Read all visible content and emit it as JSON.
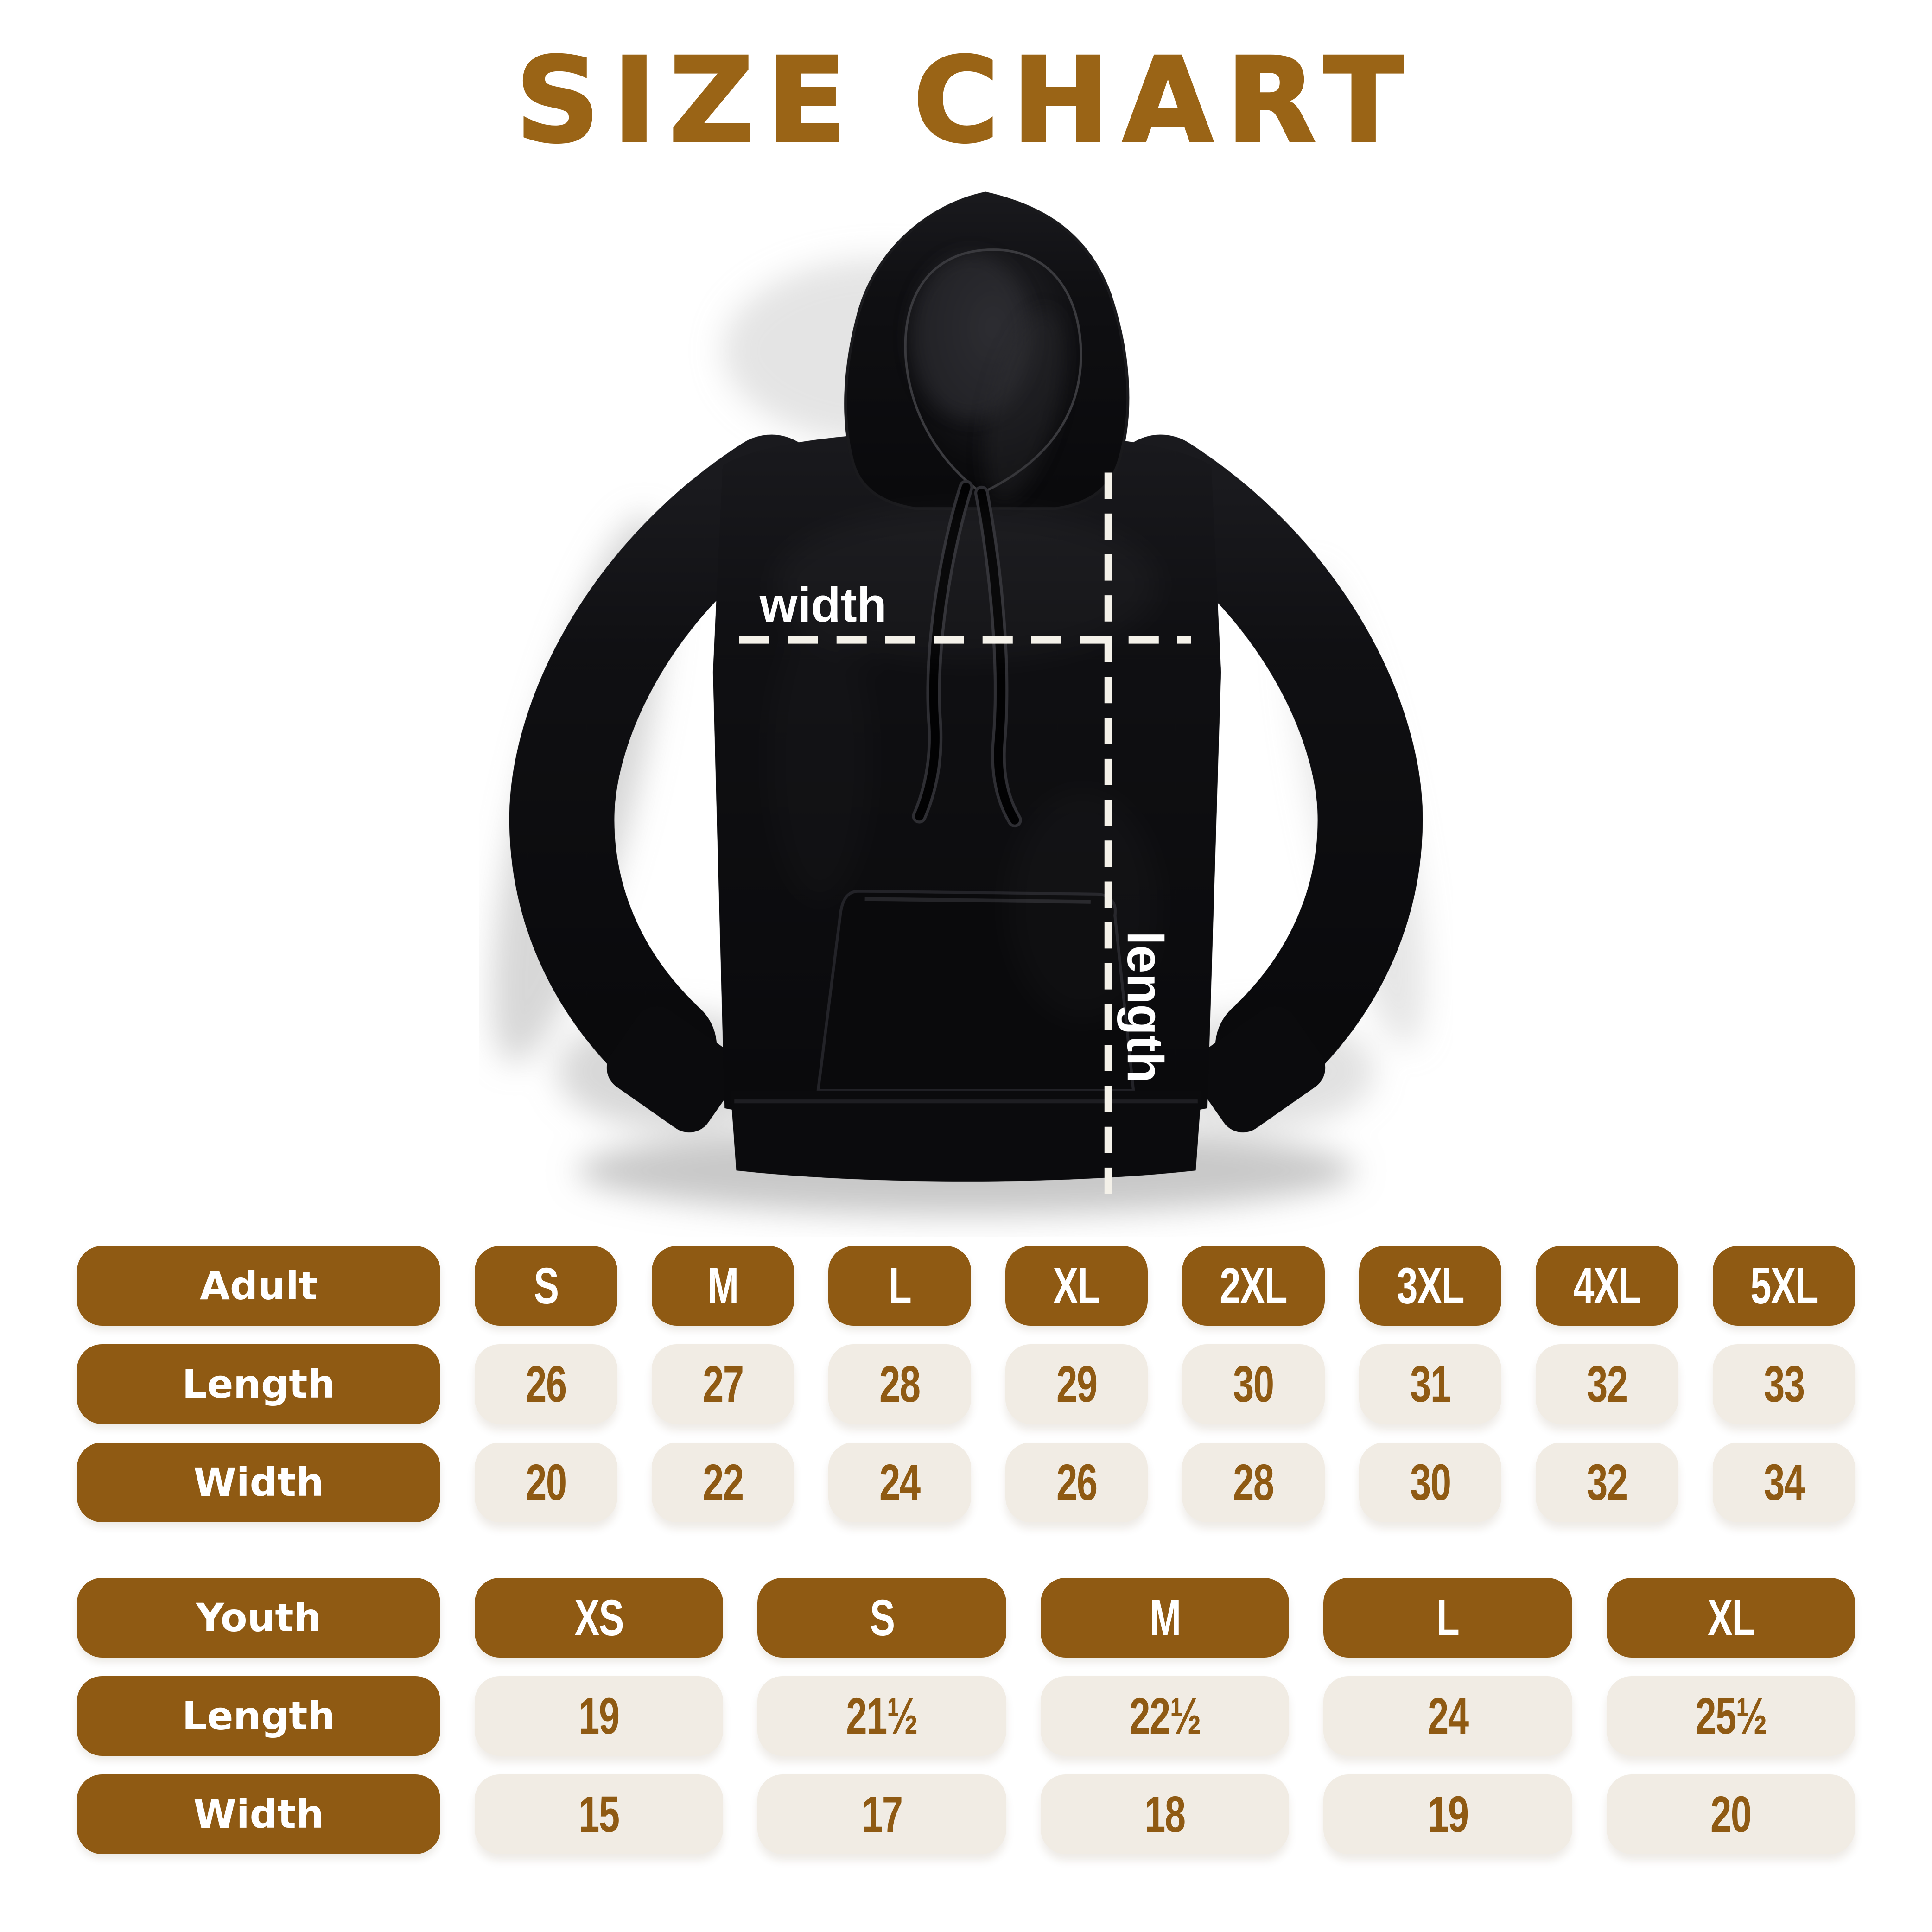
{
  "title": "SIZE CHART",
  "hoodie": {
    "width_label": "width",
    "length_label": "length"
  },
  "colors": {
    "accent_brown": "#8F5A13",
    "title_brown": "#9A6416",
    "cream": "#F1ECE4",
    "hoodie_black": "#0E0E11",
    "line_white": "#F4F1E9"
  },
  "tables": [
    {
      "name": "adult",
      "header": {
        "label": "Adult",
        "sizes": [
          "S",
          "M",
          "L",
          "XL",
          "2XL",
          "3XL",
          "4XL",
          "5XL"
        ]
      },
      "rows": [
        {
          "label": "Length",
          "values": [
            "26",
            "27",
            "28",
            "29",
            "30",
            "31",
            "32",
            "33"
          ]
        },
        {
          "label": "Width",
          "values": [
            "20",
            "22",
            "24",
            "26",
            "28",
            "30",
            "32",
            "34"
          ]
        }
      ]
    },
    {
      "name": "youth",
      "header": {
        "label": "Youth",
        "sizes": [
          "XS",
          "S",
          "M",
          "L",
          "XL"
        ]
      },
      "rows": [
        {
          "label": "Length",
          "values": [
            "19",
            "21½",
            "22½",
            "24",
            "25½"
          ]
        },
        {
          "label": "Width",
          "values": [
            "15",
            "17",
            "18",
            "19",
            "20"
          ]
        }
      ]
    }
  ]
}
